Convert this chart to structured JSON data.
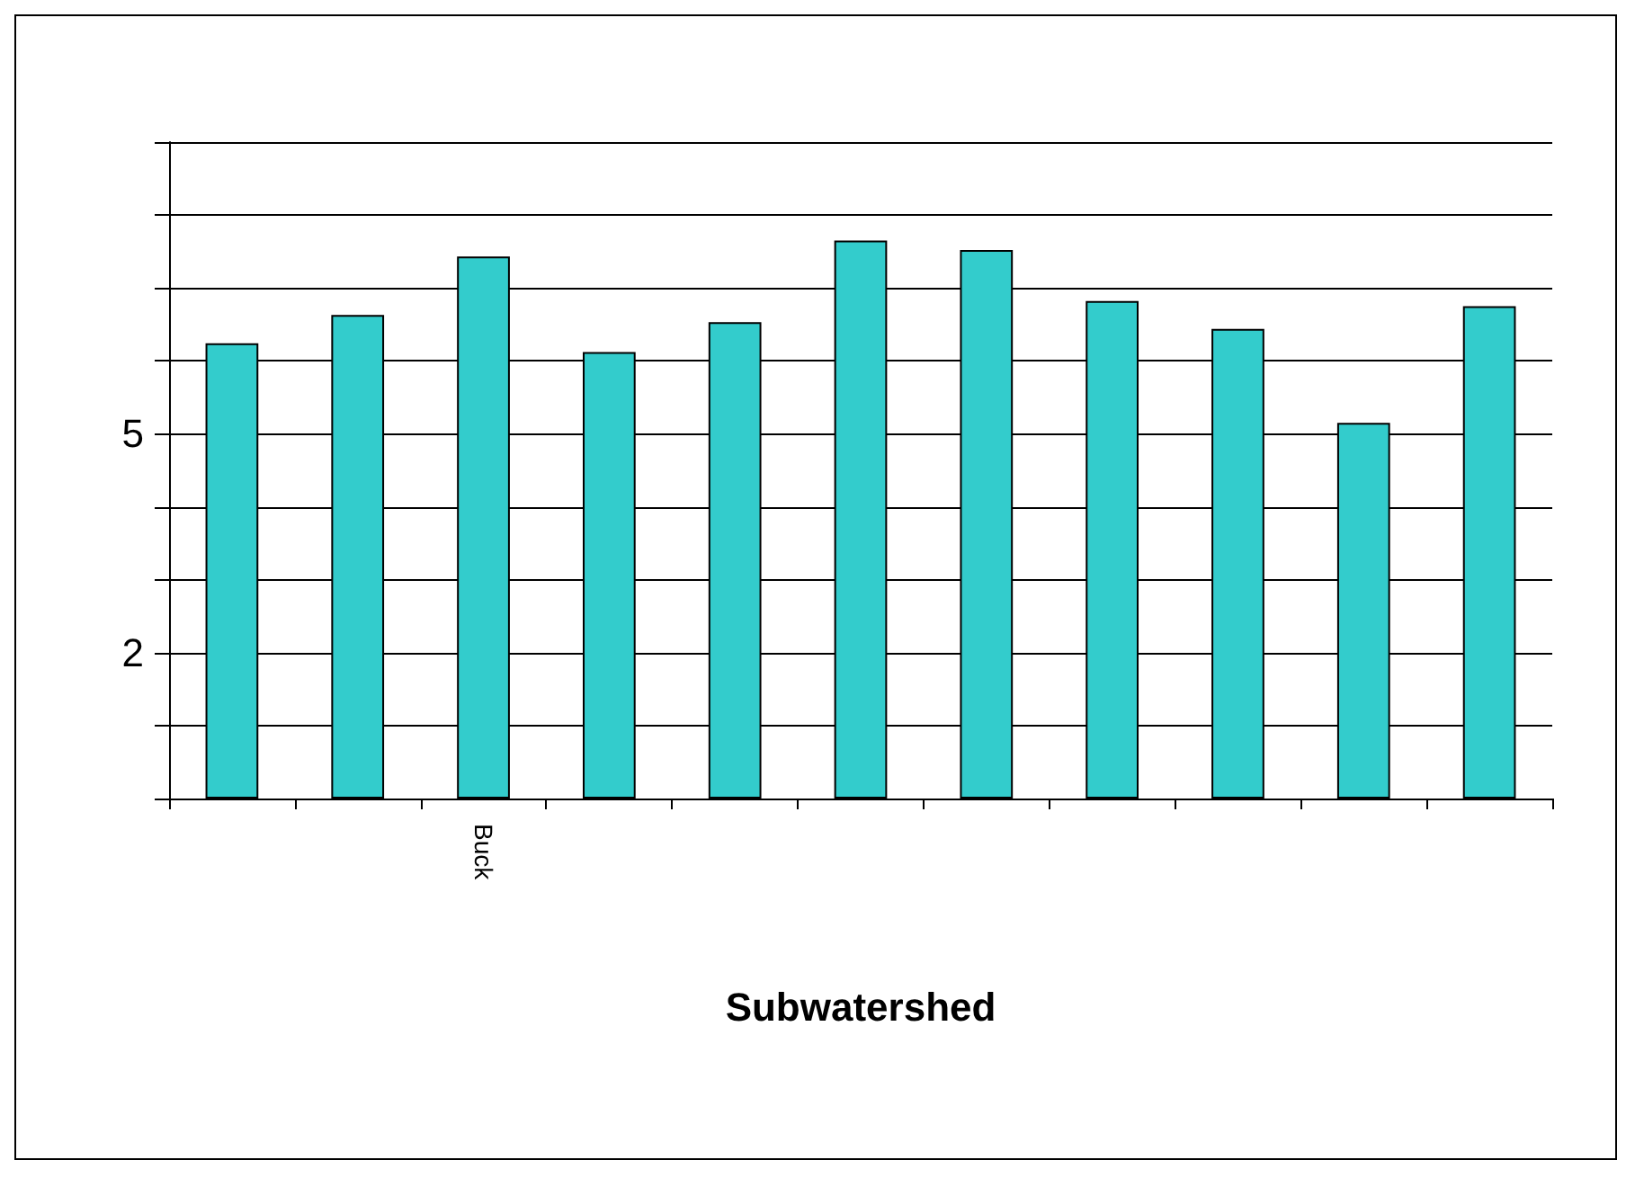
{
  "chart_data": {
    "type": "bar",
    "xlabel": "Subwatershed",
    "categories": [
      null,
      null,
      "Buck",
      null,
      null,
      null,
      null,
      null,
      null,
      null,
      null
    ],
    "values": [
      6.24,
      6.63,
      7.43,
      6.12,
      6.53,
      7.65,
      7.52,
      6.82,
      6.44,
      5.15,
      6.75
    ],
    "color": "#33cccc",
    "ylim": [
      0,
      9
    ],
    "yticks": [
      {
        "value": 0,
        "label": null
      },
      {
        "value": 1,
        "label": null
      },
      2,
      {
        "value": 3,
        "label": null
      },
      {
        "value": 4,
        "label": null
      },
      5,
      {
        "value": 6,
        "label": null
      },
      {
        "value": 7,
        "label": null
      },
      {
        "value": 8,
        "label": null
      },
      {
        "value": 9,
        "label": null
      }
    ],
    "grid": "y"
  }
}
